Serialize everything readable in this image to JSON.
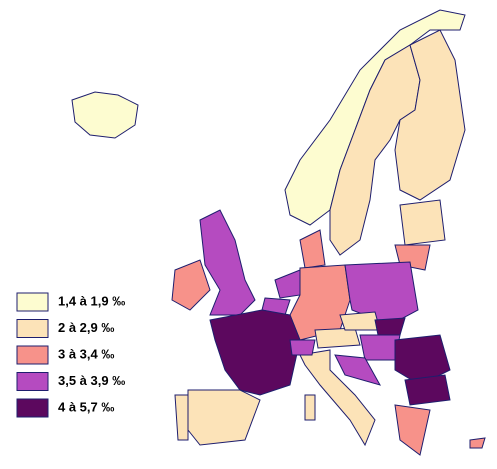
{
  "legend": {
    "items": [
      {
        "label": "1,4 à 1,9 ‰",
        "color": "#fdfcd0"
      },
      {
        "label": "2 à 2,9 ‰",
        "color": "#fce3b8"
      },
      {
        "label": "3 à 3,4 ‰",
        "color": "#f7928a"
      },
      {
        "label": "3,5 à 3,9 ‰",
        "color": "#b54bc0"
      },
      {
        "label": "4 à 5,7 ‰",
        "color": "#5c085e"
      }
    ]
  }
}
